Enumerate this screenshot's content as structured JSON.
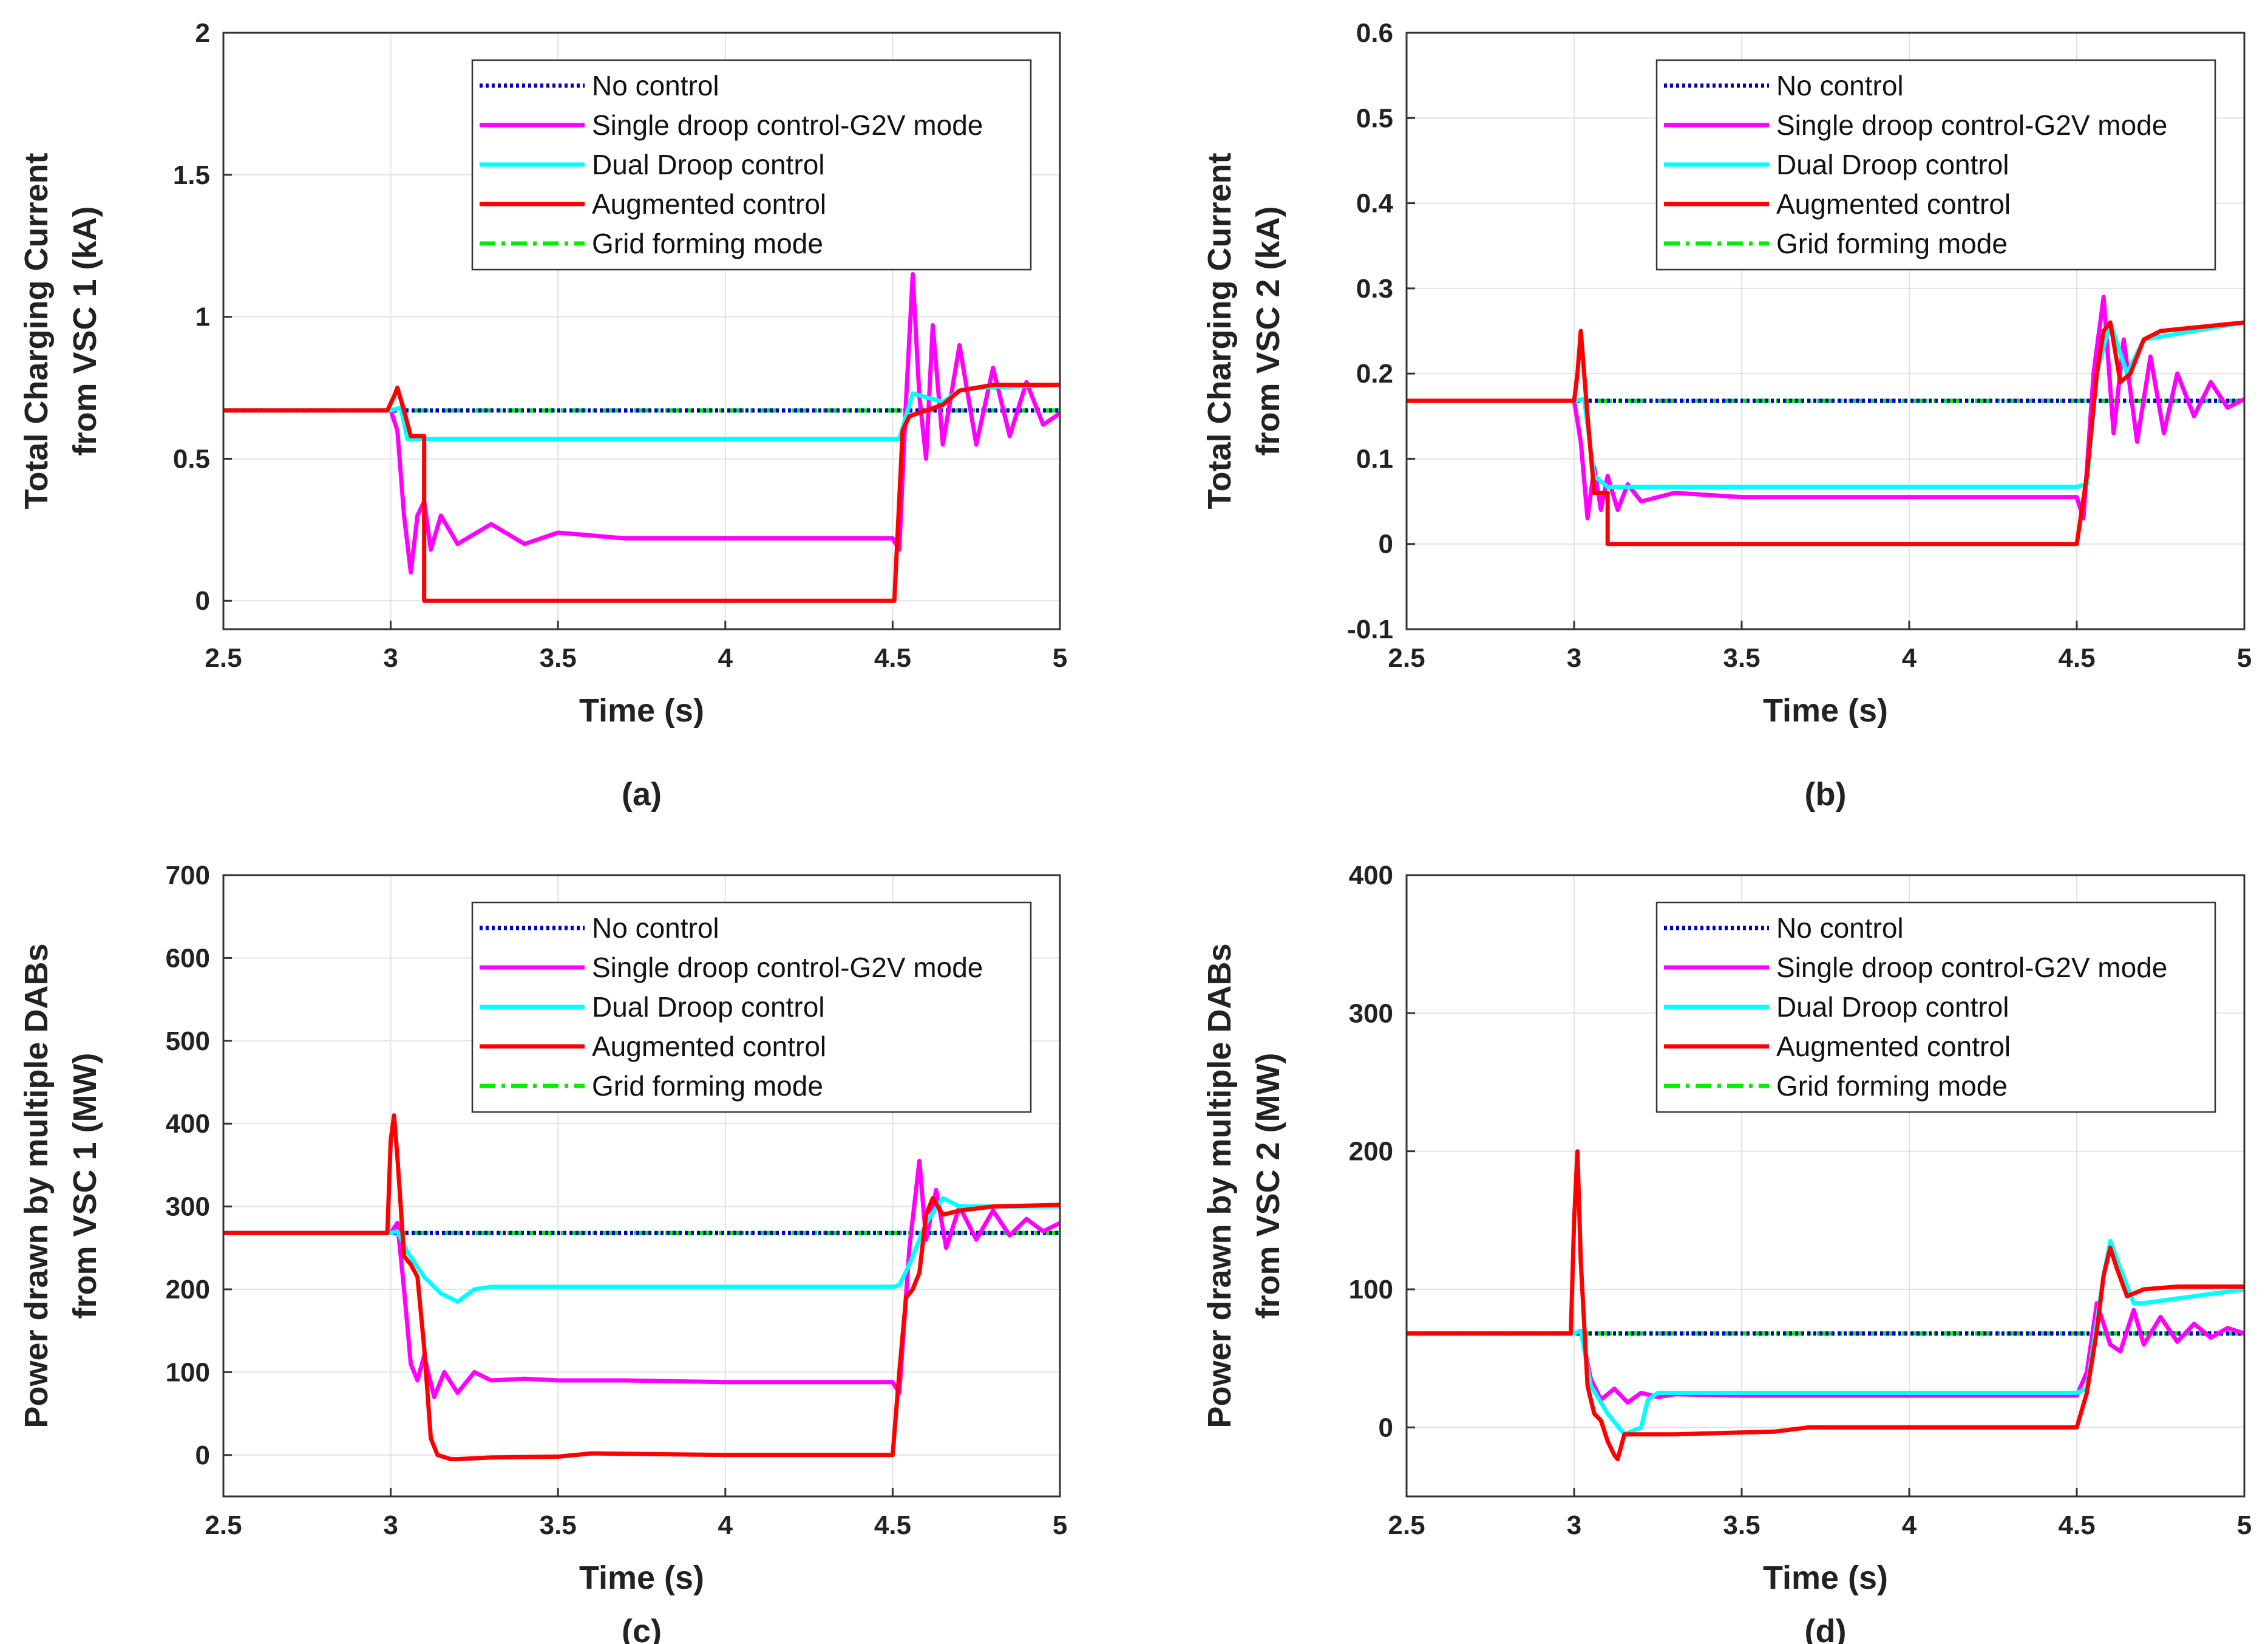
{
  "panels": [
    "(a)",
    "(b)",
    "(c)",
    "(d)"
  ],
  "legend_entries": [
    {
      "label": "No control",
      "color": "#0000cc",
      "style": "dotted"
    },
    {
      "label": "Single droop control-G2V mode",
      "color": "#ff00ff",
      "style": "solid"
    },
    {
      "label": "Dual Droop control",
      "color": "#00ffff",
      "style": "solid"
    },
    {
      "label": "Augmented control",
      "color": "#ff0000",
      "style": "solid"
    },
    {
      "label": "Grid forming mode",
      "color": "#00ee00",
      "style": "dashdot"
    }
  ],
  "chart_data": [
    {
      "panel": "(a)",
      "type": "line",
      "xlabel": "Time (s)",
      "ylabel": [
        "Total Charging Current",
        "from VSC 1 (kA)"
      ],
      "xlim": [
        2.5,
        5
      ],
      "ylim": [
        -0.1,
        2
      ],
      "xticks": [
        2.5,
        3,
        3.5,
        4,
        4.5,
        5
      ],
      "yticks": [
        0,
        0.5,
        1,
        1.5,
        2
      ],
      "ytick_labels": [
        "0",
        "0.5",
        "1",
        "1.5",
        "2"
      ],
      "grid": true,
      "legend_position": "top-right",
      "series": [
        {
          "name": "No control",
          "x": [
            2.5,
            5
          ],
          "y": [
            0.67,
            0.67
          ]
        },
        {
          "name": "Single droop control-G2V mode",
          "x": [
            2.5,
            3.0,
            3.02,
            3.04,
            3.06,
            3.08,
            3.1,
            3.12,
            3.15,
            3.2,
            3.3,
            3.4,
            3.5,
            3.7,
            4.0,
            4.3,
            4.5,
            4.52,
            4.54,
            4.56,
            4.58,
            4.6,
            4.62,
            4.65,
            4.7,
            4.75,
            4.8,
            4.85,
            4.9,
            4.95,
            5.0
          ],
          "y": [
            0.67,
            0.67,
            0.6,
            0.3,
            0.1,
            0.3,
            0.35,
            0.18,
            0.3,
            0.2,
            0.27,
            0.2,
            0.24,
            0.22,
            0.22,
            0.22,
            0.22,
            0.18,
            0.7,
            1.15,
            0.72,
            0.5,
            0.97,
            0.55,
            0.9,
            0.55,
            0.82,
            0.58,
            0.77,
            0.62,
            0.66
          ]
        },
        {
          "name": "Dual Droop control",
          "x": [
            2.5,
            3.0,
            3.03,
            3.05,
            3.12,
            4.5,
            4.52,
            4.56,
            4.65,
            4.7,
            4.75,
            5.0
          ],
          "y": [
            0.67,
            0.67,
            0.68,
            0.57,
            0.57,
            0.57,
            0.57,
            0.73,
            0.7,
            0.74,
            0.75,
            0.76
          ]
        },
        {
          "name": "Augmented control",
          "x": [
            2.5,
            2.99,
            3.01,
            3.02,
            3.04,
            3.06,
            3.1,
            3.1,
            3.105,
            4.5,
            4.505,
            4.53,
            4.55,
            4.6,
            4.65,
            4.7,
            4.75,
            4.8,
            5.0
          ],
          "y": [
            0.67,
            0.67,
            0.72,
            0.75,
            0.67,
            0.58,
            0.58,
            0.0,
            0.0,
            0.0,
            0.0,
            0.6,
            0.65,
            0.67,
            0.69,
            0.74,
            0.75,
            0.76,
            0.76
          ]
        },
        {
          "name": "Grid forming mode",
          "x": [
            2.5,
            5
          ],
          "y": [
            0.67,
            0.67
          ]
        }
      ]
    },
    {
      "panel": "(b)",
      "type": "line",
      "xlabel": "Time (s)",
      "ylabel": [
        "Total Charging Current",
        "from VSC 2 (kA)"
      ],
      "xlim": [
        2.5,
        5
      ],
      "ylim": [
        -0.1,
        0.6
      ],
      "xticks": [
        2.5,
        3,
        3.5,
        4,
        4.5,
        5
      ],
      "yticks": [
        -0.1,
        0,
        0.1,
        0.2,
        0.3,
        0.4,
        0.5,
        0.6
      ],
      "ytick_labels": [
        "-0.1",
        "0",
        "0.1",
        "0.2",
        "0.3",
        "0.4",
        "0.5",
        "0.6"
      ],
      "grid": true,
      "legend_position": "top-right",
      "series": [
        {
          "name": "No control",
          "x": [
            2.5,
            5
          ],
          "y": [
            0.168,
            0.168
          ]
        },
        {
          "name": "Single droop control-G2V mode",
          "x": [
            2.5,
            3.0,
            3.02,
            3.04,
            3.06,
            3.08,
            3.1,
            3.13,
            3.16,
            3.2,
            3.3,
            3.5,
            4.0,
            4.5,
            4.52,
            4.55,
            4.58,
            4.61,
            4.64,
            4.68,
            4.72,
            4.76,
            4.8,
            4.85,
            4.9,
            4.95,
            5.0
          ],
          "y": [
            0.168,
            0.168,
            0.12,
            0.03,
            0.09,
            0.04,
            0.08,
            0.04,
            0.07,
            0.05,
            0.06,
            0.055,
            0.055,
            0.055,
            0.03,
            0.2,
            0.29,
            0.13,
            0.24,
            0.12,
            0.22,
            0.13,
            0.2,
            0.15,
            0.19,
            0.16,
            0.17
          ]
        },
        {
          "name": "Dual Droop control",
          "x": [
            2.5,
            3.0,
            3.03,
            3.06,
            3.1,
            4.5,
            4.53,
            4.56,
            4.6,
            4.65,
            4.7,
            5.0
          ],
          "y": [
            0.168,
            0.168,
            0.17,
            0.08,
            0.067,
            0.067,
            0.07,
            0.2,
            0.26,
            0.2,
            0.24,
            0.26
          ]
        },
        {
          "name": "Augmented control",
          "x": [
            2.5,
            3.0,
            3.01,
            3.02,
            3.04,
            3.06,
            3.1,
            3.1,
            4.5,
            4.5,
            4.53,
            4.56,
            4.58,
            4.6,
            4.63,
            4.66,
            4.7,
            4.75,
            5.0
          ],
          "y": [
            0.168,
            0.168,
            0.2,
            0.25,
            0.15,
            0.06,
            0.06,
            0.0,
            0.0,
            0.0,
            0.08,
            0.2,
            0.25,
            0.26,
            0.19,
            0.2,
            0.24,
            0.25,
            0.26
          ]
        },
        {
          "name": "Grid forming mode",
          "x": [
            2.5,
            5
          ],
          "y": [
            0.168,
            0.168
          ]
        }
      ]
    },
    {
      "panel": "(c)",
      "type": "line",
      "xlabel": "Time (s)",
      "ylabel": [
        "Power drawn by multiple DABs",
        "from VSC 1 (MW)"
      ],
      "xlim": [
        2.5,
        5
      ],
      "ylim": [
        -50,
        700
      ],
      "xticks": [
        2.5,
        3,
        3.5,
        4,
        4.5,
        5
      ],
      "yticks": [
        0,
        100,
        200,
        300,
        400,
        500,
        600,
        700
      ],
      "ytick_labels": [
        "0",
        "100",
        "200",
        "300",
        "400",
        "500",
        "600",
        "700"
      ],
      "grid": true,
      "legend_position": "top-right",
      "series": [
        {
          "name": "No control",
          "x": [
            2.5,
            5
          ],
          "y": [
            268,
            268
          ]
        },
        {
          "name": "Single droop control-G2V mode",
          "x": [
            2.5,
            3.0,
            3.02,
            3.04,
            3.06,
            3.08,
            3.1,
            3.13,
            3.16,
            3.2,
            3.25,
            3.3,
            3.4,
            3.5,
            3.7,
            4.0,
            4.3,
            4.5,
            4.52,
            4.55,
            4.58,
            4.6,
            4.63,
            4.66,
            4.7,
            4.75,
            4.8,
            4.85,
            4.9,
            4.95,
            5.0
          ],
          "y": [
            268,
            268,
            280,
            200,
            110,
            90,
            120,
            70,
            100,
            75,
            100,
            90,
            92,
            90,
            90,
            88,
            88,
            88,
            75,
            250,
            355,
            260,
            320,
            250,
            300,
            260,
            295,
            265,
            285,
            270,
            280
          ]
        },
        {
          "name": "Dual Droop control",
          "x": [
            2.5,
            3.0,
            3.02,
            3.05,
            3.1,
            3.15,
            3.2,
            3.25,
            3.3,
            3.5,
            4.5,
            4.52,
            4.55,
            4.6,
            4.65,
            4.7,
            5.0
          ],
          "y": [
            268,
            268,
            270,
            245,
            215,
            195,
            185,
            200,
            203,
            203,
            203,
            205,
            230,
            280,
            310,
            300,
            300
          ]
        },
        {
          "name": "Augmented control",
          "x": [
            2.5,
            2.99,
            3.0,
            3.01,
            3.02,
            3.04,
            3.06,
            3.08,
            3.1,
            3.12,
            3.14,
            3.18,
            3.2,
            3.3,
            3.5,
            3.6,
            4.0,
            4.5,
            4.52,
            4.54,
            4.56,
            4.58,
            4.6,
            4.62,
            4.65,
            4.7,
            4.8,
            5.0
          ],
          "y": [
            268,
            268,
            380,
            410,
            360,
            240,
            230,
            215,
            130,
            20,
            0,
            -5,
            -5,
            -3,
            -2,
            2,
            0,
            0,
            100,
            190,
            200,
            220,
            290,
            310,
            290,
            295,
            300,
            302
          ]
        },
        {
          "name": "Grid forming mode",
          "x": [
            2.5,
            5
          ],
          "y": [
            268,
            268
          ]
        }
      ]
    },
    {
      "panel": "(d)",
      "type": "line",
      "xlabel": "Time (s)",
      "ylabel": [
        "Power drawn by multiple DABs",
        "from VSC 2 (MW)"
      ],
      "xlim": [
        2.5,
        5
      ],
      "ylim": [
        -50,
        400
      ],
      "xticks": [
        2.5,
        3,
        3.5,
        4,
        4.5,
        5
      ],
      "yticks": [
        0,
        100,
        200,
        300,
        400
      ],
      "ytick_labels": [
        "0",
        "100",
        "200",
        "300",
        "400"
      ],
      "grid": true,
      "legend_position": "top-right",
      "series": [
        {
          "name": "No control",
          "x": [
            2.5,
            5
          ],
          "y": [
            68,
            68
          ]
        },
        {
          "name": "Single droop control-G2V mode",
          "x": [
            2.5,
            3.0,
            3.02,
            3.05,
            3.08,
            3.12,
            3.16,
            3.2,
            3.25,
            3.3,
            3.5,
            4.0,
            4.5,
            4.53,
            4.56,
            4.6,
            4.63,
            4.67,
            4.7,
            4.75,
            4.8,
            4.85,
            4.9,
            4.95,
            5.0
          ],
          "y": [
            68,
            68,
            70,
            35,
            20,
            28,
            18,
            25,
            22,
            24,
            23,
            23,
            23,
            40,
            90,
            60,
            55,
            85,
            60,
            80,
            62,
            75,
            65,
            72,
            68
          ]
        },
        {
          "name": "Dual Droop control",
          "x": [
            2.5,
            3.0,
            3.02,
            3.05,
            3.1,
            3.15,
            3.2,
            3.22,
            3.25,
            4.5,
            4.53,
            4.58,
            4.6,
            4.63,
            4.67,
            4.7,
            5.0
          ],
          "y": [
            68,
            68,
            70,
            30,
            10,
            -5,
            0,
            20,
            25,
            25,
            28,
            110,
            135,
            115,
            90,
            90,
            100
          ]
        },
        {
          "name": "Augmented control",
          "x": [
            2.5,
            2.99,
            3.0,
            3.01,
            3.02,
            3.04,
            3.06,
            3.08,
            3.1,
            3.12,
            3.13,
            3.15,
            3.2,
            3.3,
            3.6,
            3.7,
            4.0,
            4.5,
            4.53,
            4.56,
            4.58,
            4.6,
            4.62,
            4.65,
            4.7,
            4.8,
            5.0
          ],
          "y": [
            68,
            68,
            150,
            200,
            120,
            30,
            10,
            5,
            -10,
            -20,
            -23,
            -5,
            -5,
            -5,
            -3,
            0,
            0,
            0,
            25,
            70,
            110,
            130,
            115,
            95,
            100,
            102,
            102
          ]
        },
        {
          "name": "Grid forming mode",
          "x": [
            2.5,
            5
          ],
          "y": [
            68,
            68
          ]
        }
      ]
    }
  ]
}
